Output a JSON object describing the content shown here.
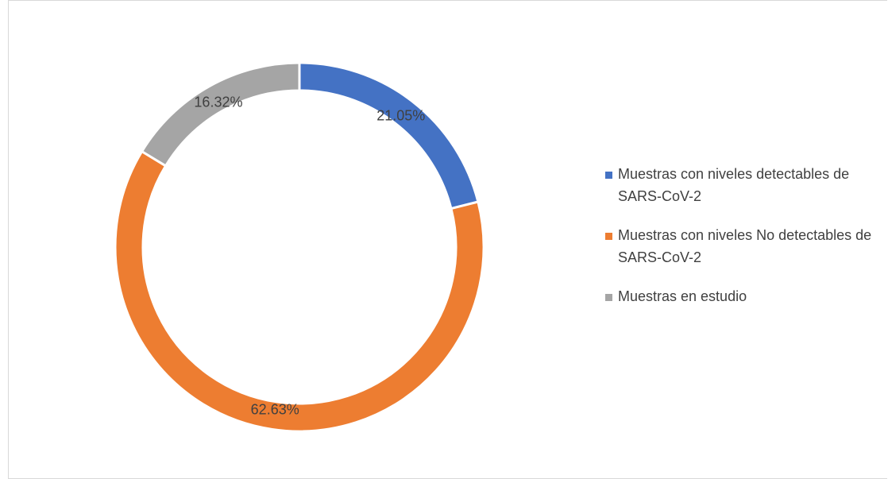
{
  "chart_data": {
    "type": "donut",
    "categories": [
      "Muestras con niveles detectables de SARS-CoV-2",
      "Muestras con niveles No detectables de SARS-CoV-2",
      "Muestras en estudio"
    ],
    "values": [
      21.05,
      62.63,
      16.32
    ],
    "value_labels": [
      "21.05%",
      "62.63%",
      "16.32%"
    ],
    "colors": [
      "#4472c4",
      "#ed7d31",
      "#a5a5a5"
    ],
    "legend": "right"
  }
}
